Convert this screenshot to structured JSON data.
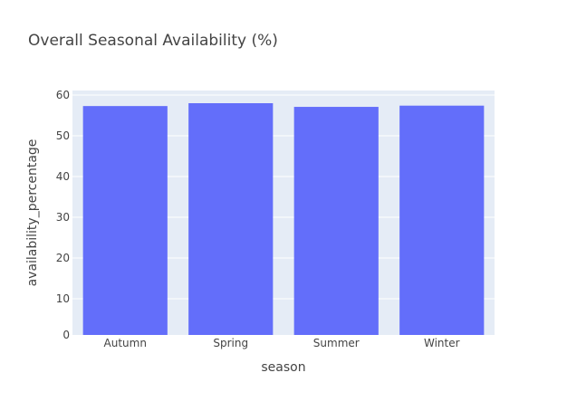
{
  "chart_data": {
    "type": "bar",
    "title": "Overall Seasonal Availability (%)",
    "xlabel": "season",
    "ylabel": "availability_percentage",
    "categories": [
      "Autumn",
      "Spring",
      "Summer",
      "Winter"
    ],
    "values": [
      57.3,
      58.0,
      57.1,
      57.4
    ],
    "ylim": [
      0,
      60
    ],
    "yticks": [
      0,
      10,
      20,
      30,
      40,
      50,
      60
    ],
    "grid": true,
    "legend": "none",
    "colors": {
      "bar": "#636efa",
      "plot_bg": "#e5ecf6",
      "grid": "#ffffff",
      "text": "#444444"
    }
  }
}
